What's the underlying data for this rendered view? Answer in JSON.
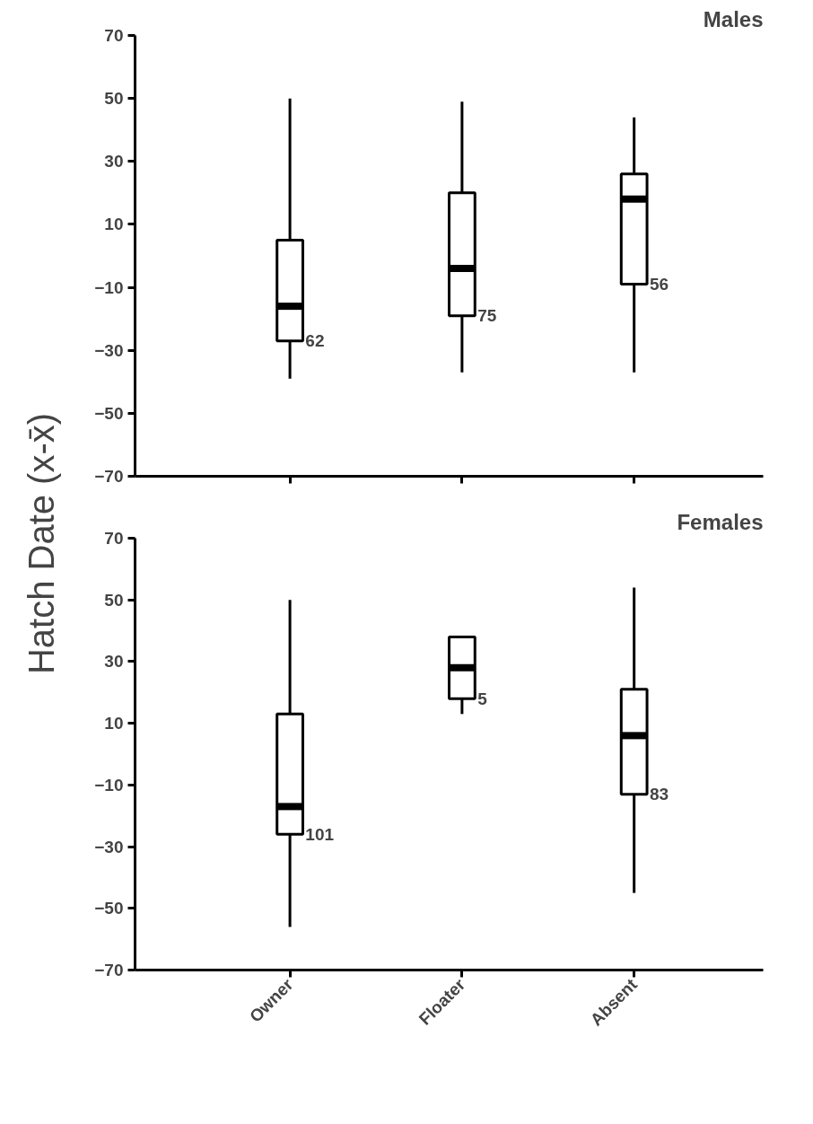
{
  "chart_data": [
    {
      "type": "box",
      "title": "Males",
      "ylabel": "Hatch Date (x-x̄)",
      "categories": [
        "Owner",
        "Floater",
        "Absent"
      ],
      "ylim": [
        -70,
        70
      ],
      "yticks": [
        -70,
        -50,
        -30,
        -10,
        10,
        30,
        50,
        70
      ],
      "tick_labels": "y",
      "grid": false,
      "boxes": [
        {
          "low": -39,
          "q1": -27,
          "median": -16,
          "q3": 5,
          "high": 50
        },
        {
          "low": -37,
          "q1": -19,
          "median": -4,
          "q3": 20,
          "high": 49
        },
        {
          "low": -37,
          "q1": -9,
          "median": 18,
          "q3": 26,
          "high": 44
        }
      ],
      "annotations": [
        {
          "text": "62",
          "x": "Owner",
          "y": -27
        },
        {
          "text": "75",
          "x": "Floater",
          "y": -19
        },
        {
          "text": "56",
          "x": "Absent",
          "y": -9
        }
      ]
    },
    {
      "type": "box",
      "title": "Females",
      "categories": [
        "Owner",
        "Floater",
        "Absent"
      ],
      "ylim": [
        -70,
        70
      ],
      "yticks": [
        -70,
        -50,
        -30,
        -10,
        10,
        30,
        50,
        70
      ],
      "grid": false,
      "boxes": [
        {
          "low": -56,
          "q1": -26,
          "median": -17,
          "q3": 13,
          "high": 50
        },
        {
          "low": 13,
          "q1": 18,
          "median": 28,
          "q3": 38,
          "high": 38
        },
        {
          "low": -45,
          "q1": -13,
          "median": 6,
          "q3": 21,
          "high": 54
        }
      ],
      "annotations": [
        {
          "text": "101",
          "x": "Owner",
          "y": -26
        },
        {
          "text": "5",
          "x": "Floater",
          "y": 18
        },
        {
          "text": "83",
          "x": "Absent",
          "y": -13
        }
      ]
    }
  ]
}
